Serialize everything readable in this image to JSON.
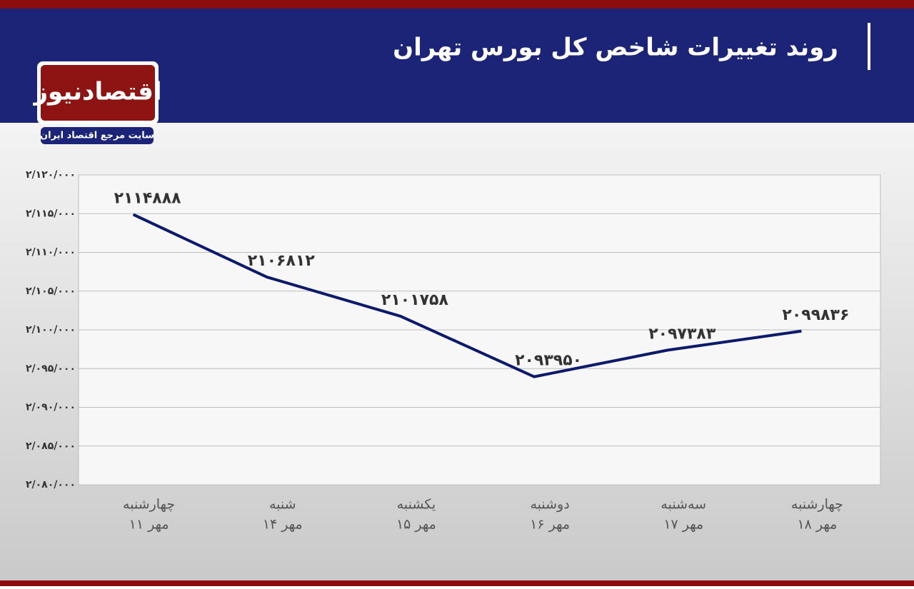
{
  "chart_data": {
    "type": "line",
    "title": "روند تغییرات شاخص کل بورس تهران",
    "logo": {
      "name": "اقتصادنیوز",
      "tagline": "سایت مرجع اقتصاد ایران"
    },
    "categories": [
      [
        "چهارشنبه",
        "۱۱ مهر"
      ],
      [
        "شنبه",
        "۱۴ مهر"
      ],
      [
        "یکشنبه",
        "۱۵ مهر"
      ],
      [
        "دوشنبه",
        "۱۶ مهر"
      ],
      [
        "سه‌شنبه",
        "۱۷ مهر"
      ],
      [
        "چهارشنبه",
        "۱۸ مهر"
      ]
    ],
    "values": [
      2114888,
      2106812,
      2101758,
      2093950,
      2097383,
      2099836
    ],
    "value_labels": [
      "۲۱۱۴۸۸۸",
      "۲۱۰۶۸۱۲",
      "۲۱۰۱۷۵۸",
      "۲۰۹۳۹۵۰",
      "۲۰۹۷۳۸۳",
      "۲۰۹۹۸۳۶"
    ],
    "color": "#0d1a6b",
    "ylim": [
      2080000,
      2120000
    ],
    "yticks": [
      {
        "value": 2080000,
        "label": "۲/۰۸۰/۰۰۰"
      },
      {
        "value": 2085000,
        "label": "۲/۰۸۵/۰۰۰"
      },
      {
        "value": 2090000,
        "label": "۲/۰۹۰/۰۰۰"
      },
      {
        "value": 2095000,
        "label": "۲/۰۹۵/۰۰۰"
      },
      {
        "value": 2100000,
        "label": "۲/۱۰۰/۰۰۰"
      },
      {
        "value": 2105000,
        "label": "۲/۱۰۵/۰۰۰"
      },
      {
        "value": 2110000,
        "label": "۲/۱۱۰/۰۰۰"
      },
      {
        "value": 2115000,
        "label": "۲/۱۱۵/۰۰۰"
      },
      {
        "value": 2120000,
        "label": "۲/۱۲۰/۰۰۰"
      }
    ],
    "grid": true
  }
}
